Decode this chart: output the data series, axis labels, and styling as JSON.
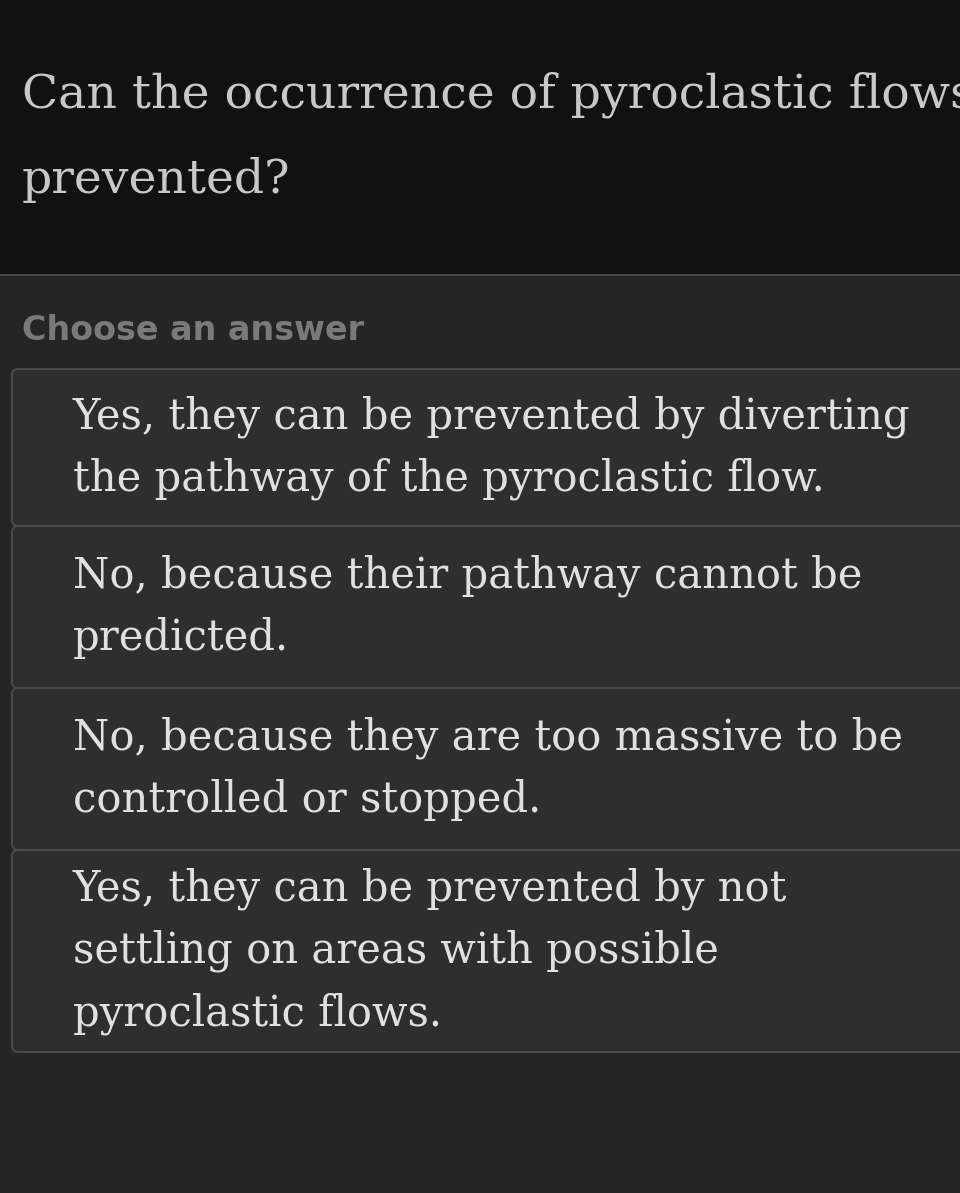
{
  "question_line1": "Can the occurrence of pyroclastic flows be",
  "question_line2": "prevented?",
  "choose_label": "Choose an answer",
  "answers": [
    "Yes, they can be prevented by diverting\nthe pathway of the pyroclastic flow.",
    "No, because their pathway cannot be\npredicted.",
    "No, because they are too massive to be\ncontrolled or stopped.",
    "Yes, they can be prevented by not\nsettling on areas with possible\npyroclastic flows."
  ],
  "bg_top": "#111111",
  "bg_bottom": "#252525",
  "divider_color": "#4a4a4a",
  "question_color": "#c8c8c8",
  "choose_color": "#7a7a7a",
  "answer_box_bg": "#2e2e2e",
  "answer_box_border": "#4a4a4a",
  "answer_text_color": "#e0e0e0",
  "question_fontsize": 34,
  "choose_fontsize": 24,
  "answer_fontsize": 30,
  "fig_width": 9.6,
  "fig_height": 11.93,
  "dpi": 100
}
